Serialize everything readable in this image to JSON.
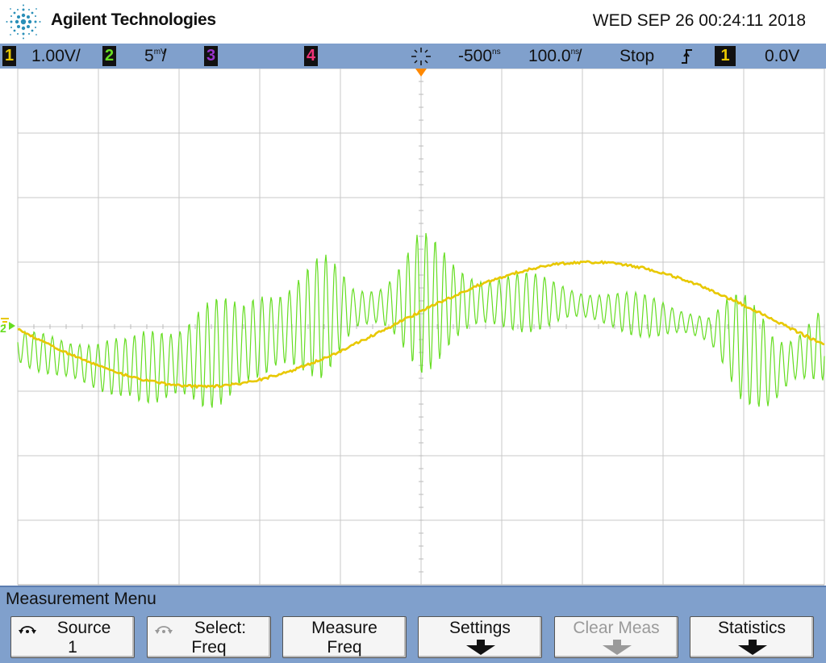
{
  "header": {
    "brand": "Agilent Technologies",
    "datetime": "WED SEP 26 00:24:11 2018"
  },
  "status": {
    "ch1_num": "1",
    "ch1_scale": "1.00V/",
    "ch2_num": "2",
    "ch2_scale": "5",
    "ch2_unit": "mV",
    "ch2_suffix": "/",
    "ch3_num": "3",
    "ch4_num": "4",
    "delay": "-500",
    "delay_unit": "ns",
    "timebase": "100.0",
    "timebase_unit": "ns",
    "timebase_suffix": "/",
    "run_state": "Stop",
    "trigger_slope": "rising",
    "trigger_source": "1",
    "trigger_level": "0.0V"
  },
  "markers": {
    "ch2_ground": "2"
  },
  "colors": {
    "ch1": "#e8c800",
    "ch2": "#66dd22",
    "ch3": "#9933cc",
    "ch4": "#ee3377",
    "trigger": "#ff8800",
    "panel": "#80a0cc"
  },
  "menu": {
    "title": "Measurement Menu",
    "softkeys": [
      {
        "line1": "Source",
        "line2": "1",
        "icon": "rotate-knob-icon",
        "enabled": true
      },
      {
        "line1": "Select:",
        "line2": "Freq",
        "icon": "rotate-knob-icon",
        "enabled": true
      },
      {
        "line1": "Measure",
        "line2": "Freq",
        "icon": "",
        "enabled": true
      },
      {
        "line1": "Settings",
        "line2": "",
        "icon": "submenu-arrow-icon",
        "enabled": true
      },
      {
        "line1": "Clear Meas",
        "line2": "",
        "icon": "submenu-arrow-icon",
        "enabled": false
      },
      {
        "line1": "Statistics",
        "line2": "",
        "icon": "submenu-arrow-icon",
        "enabled": true
      }
    ]
  }
}
